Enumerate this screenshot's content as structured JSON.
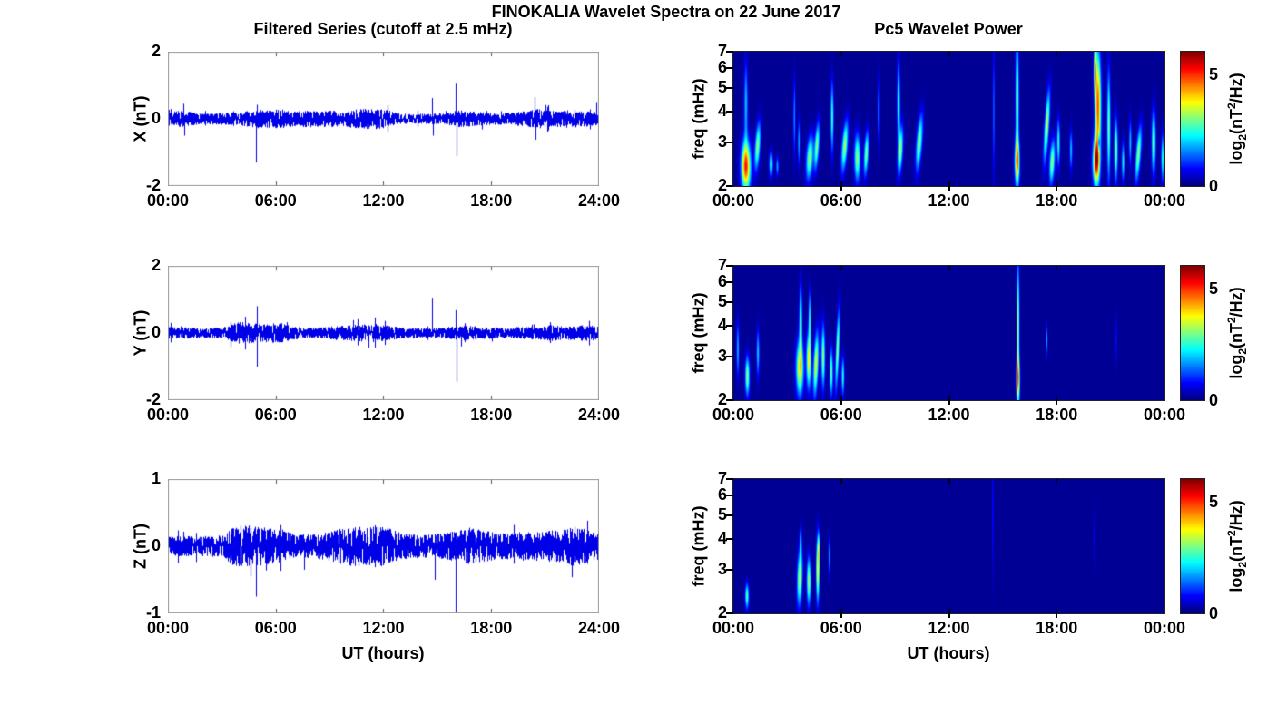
{
  "figure": {
    "title": "FINOKALIA Wavelet Spectra on 22 June 2017",
    "left_title": "Filtered Series (cutoff at 2.5 mHz)",
    "right_title": "Pc5 Wavelet Power",
    "xlabel": "UT (hours)",
    "background_color": "#ffffff",
    "series_line_color": "#0000e8",
    "colorbar": {
      "label": {
        "pre": "log",
        "sub": "2",
        "mid": "(nT",
        "sup": "2",
        "post": "/Hz)"
      },
      "range": [
        0,
        6
      ],
      "ticks": [
        {
          "value": 0,
          "label": "0"
        },
        {
          "value": 5,
          "label": "5"
        }
      ],
      "colormap": "jet"
    }
  },
  "chart_data": [
    {
      "type": "line",
      "panel": "left-top",
      "component": "X",
      "ylabel": "X (nT)",
      "ylim": [
        -2,
        2
      ],
      "y_ticks": [
        2,
        0,
        -2
      ],
      "x_range_hours": [
        0,
        24
      ],
      "x_tick_hours": [
        0,
        6,
        12,
        18,
        24
      ],
      "x_ticks": [
        "00:00",
        "06:00",
        "12:00",
        "18:00",
        "24:00"
      ],
      "noise_envelope_nT": [
        [
          0,
          0.18
        ],
        [
          0.6,
          0.26
        ],
        [
          1,
          0.22
        ],
        [
          2,
          0.16
        ],
        [
          3,
          0.18
        ],
        [
          4,
          0.2
        ],
        [
          5,
          0.28
        ],
        [
          5.8,
          0.26
        ],
        [
          6.3,
          0.3
        ],
        [
          7,
          0.22
        ],
        [
          7.6,
          0.26
        ],
        [
          8.3,
          0.24
        ],
        [
          9,
          0.26
        ],
        [
          9.6,
          0.22
        ],
        [
          10.2,
          0.28
        ],
        [
          11,
          0.3
        ],
        [
          11.6,
          0.32
        ],
        [
          12.2,
          0.26
        ],
        [
          12.8,
          0.18
        ],
        [
          13.5,
          0.14
        ],
        [
          14.2,
          0.15
        ],
        [
          15,
          0.16
        ],
        [
          15.8,
          0.22
        ],
        [
          16.2,
          0.26
        ],
        [
          17,
          0.22
        ],
        [
          18,
          0.18
        ],
        [
          19,
          0.18
        ],
        [
          20,
          0.24
        ],
        [
          20.6,
          0.3
        ],
        [
          21.2,
          0.24
        ],
        [
          22,
          0.26
        ],
        [
          22.6,
          0.28
        ],
        [
          23.2,
          0.24
        ],
        [
          24,
          0.22
        ]
      ],
      "spikes": [
        [
          0.85,
          0.45
        ],
        [
          0.9,
          -0.5
        ],
        [
          4.92,
          -1.3
        ],
        [
          4.95,
          0.42
        ],
        [
          14.75,
          0.62
        ],
        [
          14.78,
          -0.5
        ],
        [
          16.05,
          1.05
        ],
        [
          16.1,
          -1.1
        ],
        [
          20.45,
          0.65
        ],
        [
          20.5,
          -0.62
        ],
        [
          23.9,
          0.5
        ]
      ]
    },
    {
      "type": "line",
      "panel": "left-middle",
      "component": "Y",
      "ylabel": "Y (nT)",
      "ylim": [
        -2,
        2
      ],
      "y_ticks": [
        2,
        0,
        -2
      ],
      "x_range_hours": [
        0,
        24
      ],
      "x_tick_hours": [
        0,
        6,
        12,
        18,
        24
      ],
      "x_ticks": [
        "00:00",
        "06:00",
        "12:00",
        "18:00",
        "24:00"
      ],
      "noise_envelope_nT": [
        [
          0,
          0.18
        ],
        [
          1,
          0.17
        ],
        [
          2,
          0.15
        ],
        [
          3,
          0.16
        ],
        [
          3.6,
          0.28
        ],
        [
          4.1,
          0.34
        ],
        [
          4.6,
          0.3
        ],
        [
          5.2,
          0.26
        ],
        [
          5.8,
          0.3
        ],
        [
          6.3,
          0.3
        ],
        [
          6.8,
          0.22
        ],
        [
          7.5,
          0.16
        ],
        [
          8.5,
          0.17
        ],
        [
          9.5,
          0.22
        ],
        [
          10.2,
          0.24
        ],
        [
          11,
          0.26
        ],
        [
          11.6,
          0.28
        ],
        [
          12.2,
          0.22
        ],
        [
          13,
          0.17
        ],
        [
          14,
          0.14
        ],
        [
          15,
          0.15
        ],
        [
          16,
          0.2
        ],
        [
          16.6,
          0.22
        ],
        [
          17.5,
          0.19
        ],
        [
          18.5,
          0.16
        ],
        [
          19.5,
          0.18
        ],
        [
          20.5,
          0.18
        ],
        [
          21.4,
          0.24
        ],
        [
          22,
          0.2
        ],
        [
          22.8,
          0.22
        ],
        [
          23.4,
          0.24
        ],
        [
          24,
          0.2
        ]
      ],
      "spikes": [
        [
          4.95,
          0.8
        ],
        [
          4.98,
          -1.0
        ],
        [
          14.75,
          1.05
        ],
        [
          16.05,
          0.68
        ],
        [
          16.1,
          -1.45
        ],
        [
          16.35,
          -0.4
        ]
      ]
    },
    {
      "type": "line",
      "panel": "left-bottom",
      "component": "Z",
      "ylabel": "Z (nT)",
      "ylim": [
        -1,
        1
      ],
      "y_ticks": [
        1,
        0,
        -1
      ],
      "x_range_hours": [
        0,
        24
      ],
      "x_tick_hours": [
        0,
        6,
        12,
        18,
        24
      ],
      "x_ticks": [
        "00:00",
        "06:00",
        "12:00",
        "18:00",
        "24:00"
      ],
      "noise_envelope_nT": [
        [
          0,
          0.15
        ],
        [
          1,
          0.15
        ],
        [
          2,
          0.15
        ],
        [
          3,
          0.17
        ],
        [
          3.6,
          0.28
        ],
        [
          4.2,
          0.32
        ],
        [
          4.8,
          0.3
        ],
        [
          5.4,
          0.28
        ],
        [
          6,
          0.26
        ],
        [
          6.6,
          0.22
        ],
        [
          7.3,
          0.18
        ],
        [
          8.2,
          0.18
        ],
        [
          9,
          0.22
        ],
        [
          9.6,
          0.26
        ],
        [
          10.3,
          0.3
        ],
        [
          11,
          0.3
        ],
        [
          11.6,
          0.32
        ],
        [
          12.2,
          0.28
        ],
        [
          12.8,
          0.22
        ],
        [
          13.5,
          0.18
        ],
        [
          14.5,
          0.18
        ],
        [
          15.5,
          0.2
        ],
        [
          16.3,
          0.24
        ],
        [
          16.8,
          0.28
        ],
        [
          17.5,
          0.24
        ],
        [
          18.3,
          0.2
        ],
        [
          19.2,
          0.2
        ],
        [
          20,
          0.22
        ],
        [
          21,
          0.22
        ],
        [
          22,
          0.26
        ],
        [
          22.7,
          0.3
        ],
        [
          23.4,
          0.24
        ],
        [
          24,
          0.2
        ]
      ],
      "spikes": [
        [
          4.6,
          -0.45
        ],
        [
          4.9,
          -0.75
        ],
        [
          7.6,
          -0.35
        ],
        [
          14.9,
          -0.5
        ],
        [
          16.05,
          -1.0
        ]
      ]
    },
    {
      "type": "heatmap",
      "panel": "right-top",
      "component": "X",
      "ylabel": "freq (mHz)",
      "ylim_mhz": [
        2,
        7
      ],
      "y_scale": "log2",
      "y_ticks": [
        7,
        6,
        5,
        4,
        3,
        2
      ],
      "x_range_hours": [
        0,
        24
      ],
      "x_tick_hours": [
        0,
        6,
        12,
        18,
        24
      ],
      "x_ticks": [
        "00:00",
        "06:00",
        "12:00",
        "18:00",
        "00:00"
      ],
      "power_range_log2": [
        0,
        6
      ],
      "blobs_t_f_st_sf_amp_tilt": [
        [
          0.7,
          2.4,
          0.25,
          0.32,
          0.82,
          0
        ],
        [
          0.7,
          4.3,
          0.1,
          0.55,
          0.3,
          0
        ],
        [
          1.35,
          2.9,
          0.14,
          0.3,
          0.5,
          0.25
        ],
        [
          2.1,
          2.45,
          0.1,
          0.16,
          0.42,
          0
        ],
        [
          2.45,
          2.4,
          0.07,
          0.12,
          0.28,
          0
        ],
        [
          3.4,
          3.8,
          0.06,
          0.5,
          0.25,
          0
        ],
        [
          3.65,
          3.0,
          0.06,
          0.3,
          0.28,
          0
        ],
        [
          4.25,
          2.6,
          0.18,
          0.28,
          0.5,
          0.25
        ],
        [
          4.65,
          2.9,
          0.12,
          0.3,
          0.48,
          0.25
        ],
        [
          5.5,
          3.8,
          0.08,
          0.45,
          0.42,
          0
        ],
        [
          6.2,
          2.9,
          0.15,
          0.32,
          0.52,
          0.3
        ],
        [
          6.9,
          2.6,
          0.16,
          0.3,
          0.5,
          0
        ],
        [
          7.4,
          2.7,
          0.12,
          0.28,
          0.48,
          0.2
        ],
        [
          8.1,
          4.0,
          0.06,
          0.45,
          0.28,
          0
        ],
        [
          9.2,
          4.3,
          0.08,
          0.55,
          0.42,
          0
        ],
        [
          9.3,
          2.8,
          0.13,
          0.3,
          0.5,
          0.2
        ],
        [
          10.35,
          3.0,
          0.15,
          0.35,
          0.5,
          0.3
        ],
        [
          14.5,
          4.0,
          0.05,
          0.9,
          0.22,
          0
        ],
        [
          15.8,
          2.5,
          0.13,
          0.3,
          0.68,
          0
        ],
        [
          15.8,
          4.5,
          0.09,
          0.8,
          0.5,
          0
        ],
        [
          17.45,
          3.5,
          0.12,
          0.45,
          0.55,
          0.25
        ],
        [
          17.75,
          2.5,
          0.14,
          0.28,
          0.5,
          0.2
        ],
        [
          18.1,
          3.0,
          0.08,
          0.3,
          0.4,
          0
        ],
        [
          18.8,
          2.8,
          0.08,
          0.25,
          0.3,
          0
        ],
        [
          20.2,
          2.5,
          0.18,
          0.3,
          0.8,
          0
        ],
        [
          20.3,
          4.2,
          0.16,
          0.7,
          0.78,
          0
        ],
        [
          20.15,
          6.0,
          0.08,
          0.35,
          0.55,
          0
        ],
        [
          20.35,
          3.0,
          0.045,
          0.1,
          -0.45,
          0
        ],
        [
          20.9,
          3.5,
          0.09,
          0.7,
          0.48,
          0
        ],
        [
          21.3,
          2.8,
          0.1,
          0.4,
          0.48,
          0
        ],
        [
          21.7,
          2.5,
          0.08,
          0.25,
          0.35,
          0
        ],
        [
          22.1,
          3.0,
          0.07,
          0.3,
          0.3,
          0
        ],
        [
          22.55,
          2.7,
          0.13,
          0.35,
          0.5,
          0.3
        ],
        [
          23.4,
          3.0,
          0.11,
          0.4,
          0.48,
          0
        ],
        [
          23.9,
          2.6,
          0.08,
          0.3,
          0.4,
          0
        ]
      ]
    },
    {
      "type": "heatmap",
      "panel": "right-middle",
      "component": "Y",
      "ylabel": "freq (mHz)",
      "ylim_mhz": [
        2,
        7
      ],
      "y_scale": "log2",
      "y_ticks": [
        7,
        6,
        5,
        4,
        3,
        2
      ],
      "x_range_hours": [
        0,
        24
      ],
      "x_tick_hours": [
        0,
        6,
        12,
        18,
        24
      ],
      "x_ticks": [
        "00:00",
        "06:00",
        "12:00",
        "18:00",
        "00:00"
      ],
      "power_range_log2": [
        0,
        6
      ],
      "blobs_t_f_st_sf_amp_tilt": [
        [
          0.25,
          3.2,
          0.07,
          0.35,
          0.3,
          0
        ],
        [
          0.78,
          2.5,
          0.12,
          0.25,
          0.5,
          0
        ],
        [
          1.37,
          3.1,
          0.08,
          0.3,
          0.32,
          0
        ],
        [
          3.7,
          2.7,
          0.2,
          0.35,
          0.62,
          0
        ],
        [
          3.75,
          4.2,
          0.08,
          0.45,
          0.45,
          0
        ],
        [
          4.2,
          2.9,
          0.13,
          0.35,
          0.6,
          0
        ],
        [
          4.25,
          4.3,
          0.06,
          0.35,
          0.38,
          0
        ],
        [
          4.6,
          2.8,
          0.13,
          0.4,
          0.58,
          0.15
        ],
        [
          5.0,
          3.0,
          0.1,
          0.4,
          0.5,
          0
        ],
        [
          5.45,
          2.6,
          0.09,
          0.3,
          0.46,
          0
        ],
        [
          5.8,
          3.2,
          0.09,
          0.5,
          0.5,
          0.15
        ],
        [
          6.1,
          2.5,
          0.08,
          0.25,
          0.38,
          0
        ],
        [
          15.85,
          2.4,
          0.1,
          0.3,
          0.6,
          0
        ],
        [
          15.85,
          4.0,
          0.07,
          0.8,
          0.55,
          0
        ],
        [
          17.45,
          3.5,
          0.04,
          0.2,
          0.28,
          0
        ],
        [
          21.3,
          3.5,
          0.06,
          0.3,
          0.12,
          0
        ]
      ]
    },
    {
      "type": "heatmap",
      "panel": "right-bottom",
      "component": "Z",
      "ylabel": "freq (mHz)",
      "ylim_mhz": [
        2,
        7
      ],
      "y_scale": "log2",
      "y_ticks": [
        7,
        6,
        5,
        4,
        3,
        2
      ],
      "x_range_hours": [
        0,
        24
      ],
      "x_tick_hours": [
        0,
        6,
        12,
        18,
        24
      ],
      "x_ticks": [
        "00:00",
        "06:00",
        "12:00",
        "18:00",
        "00:00"
      ],
      "power_range_log2": [
        0,
        6
      ],
      "blobs_t_f_st_sf_amp_tilt": [
        [
          0.76,
          2.35,
          0.1,
          0.16,
          0.45,
          0
        ],
        [
          3.7,
          2.8,
          0.14,
          0.35,
          0.55,
          0.1
        ],
        [
          3.75,
          3.9,
          0.05,
          0.2,
          0.32,
          0
        ],
        [
          4.2,
          2.7,
          0.11,
          0.3,
          0.52,
          0
        ],
        [
          4.7,
          3.0,
          0.09,
          0.4,
          0.62,
          0
        ],
        [
          4.75,
          3.7,
          0.05,
          0.2,
          0.36,
          0
        ],
        [
          5.35,
          3.4,
          0.05,
          0.25,
          0.28,
          0
        ],
        [
          14.45,
          5.0,
          0.035,
          0.8,
          0.16,
          0
        ],
        [
          20.1,
          4.0,
          0.05,
          0.4,
          0.1,
          0
        ]
      ]
    }
  ]
}
